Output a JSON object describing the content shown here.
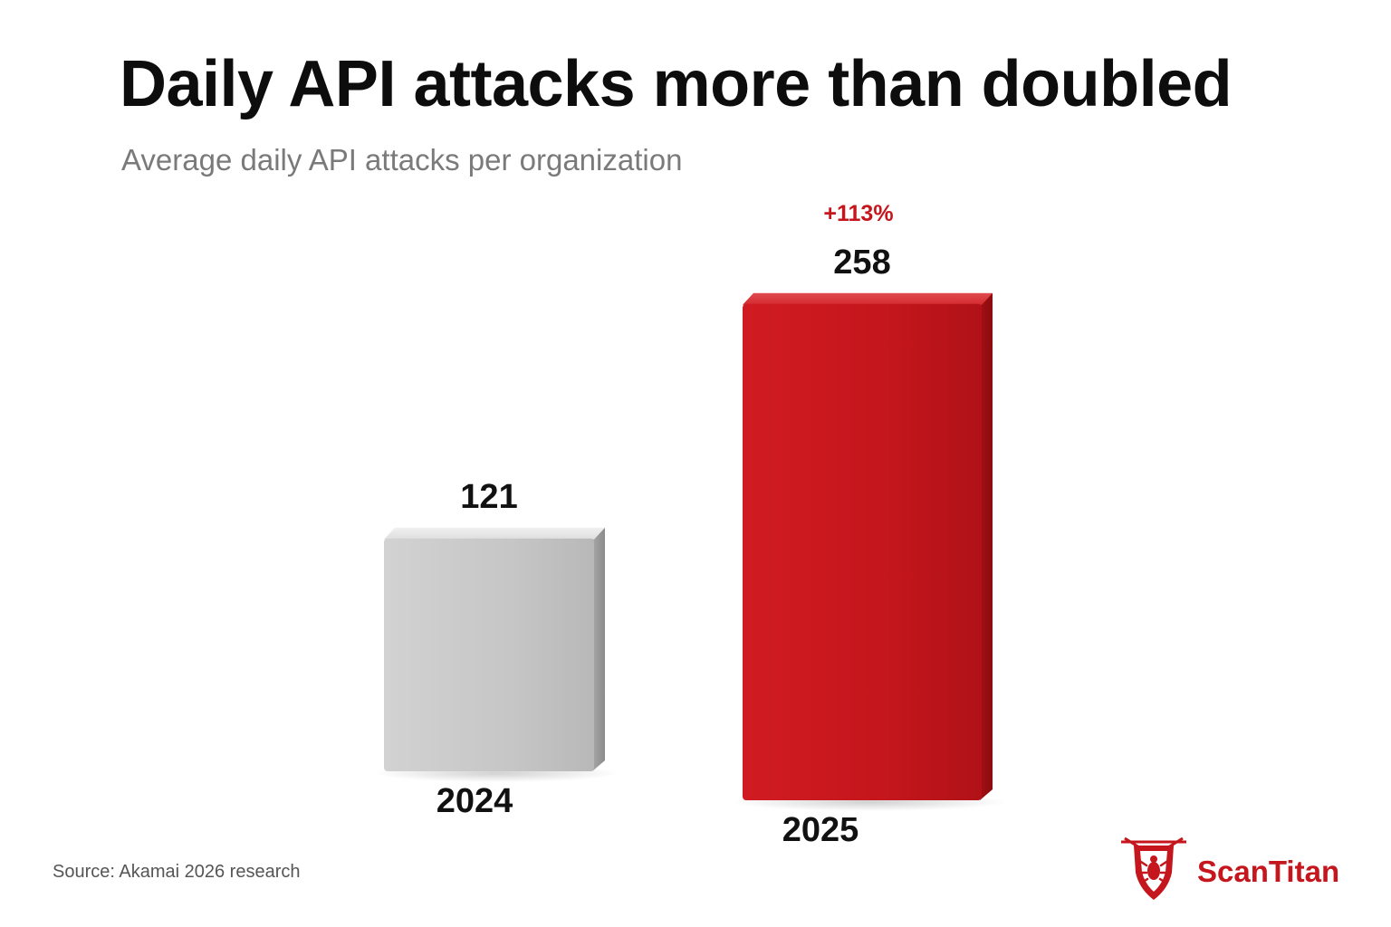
{
  "header": {
    "title": "Daily API attacks more than doubled",
    "subtitle": "Average daily API attacks per organization"
  },
  "chart_data": {
    "type": "bar",
    "categories": [
      "2024",
      "2025"
    ],
    "values": [
      121,
      258
    ],
    "value_labels": [
      "121",
      "258"
    ],
    "annotation": "+113%",
    "ylim": [
      0,
      300
    ],
    "grid": false
  },
  "colors": {
    "bar_2024": "#c4c4c4",
    "bar_2025": "#c4161c",
    "annotation": "#c4161c",
    "brand": "#c4161c"
  },
  "footer": {
    "source": "Source: Akamai 2026 research"
  },
  "brand": {
    "name": "ScanTitan",
    "icon": "shield-bug-icon"
  }
}
